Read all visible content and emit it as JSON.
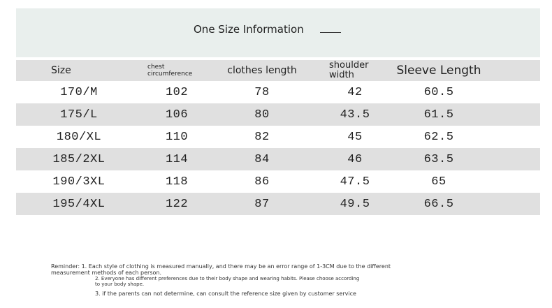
{
  "header": {
    "title": "One Size Information"
  },
  "table": {
    "columns": [
      "Size",
      "chest circumference",
      "clothes length",
      "shoulder width",
      "Sleeve Length"
    ],
    "rows": [
      [
        "170/M",
        "102",
        "78",
        "42",
        "60.5"
      ],
      [
        "175/L",
        "106",
        "80",
        "43.5",
        "61.5"
      ],
      [
        "180/XL",
        "110",
        "82",
        "45",
        "62.5"
      ],
      [
        "185/2XL",
        "114",
        "84",
        "46",
        "63.5"
      ],
      [
        "190/3XL",
        "118",
        "86",
        "47.5",
        "65"
      ],
      [
        "195/4XL",
        "122",
        "87",
        "49.5",
        "66.5"
      ]
    ]
  },
  "notes": [
    "Reminder: 1. Each style of clothing is measured manually, and there may be an error range of 1-3CM due to the different measurement methods of each person.",
    "2. Everyone has different preferences due to their body shape and wearing habits. Please choose according to your body shape.",
    "3. if the parents can not determine, can consult the reference size given by customer service"
  ]
}
